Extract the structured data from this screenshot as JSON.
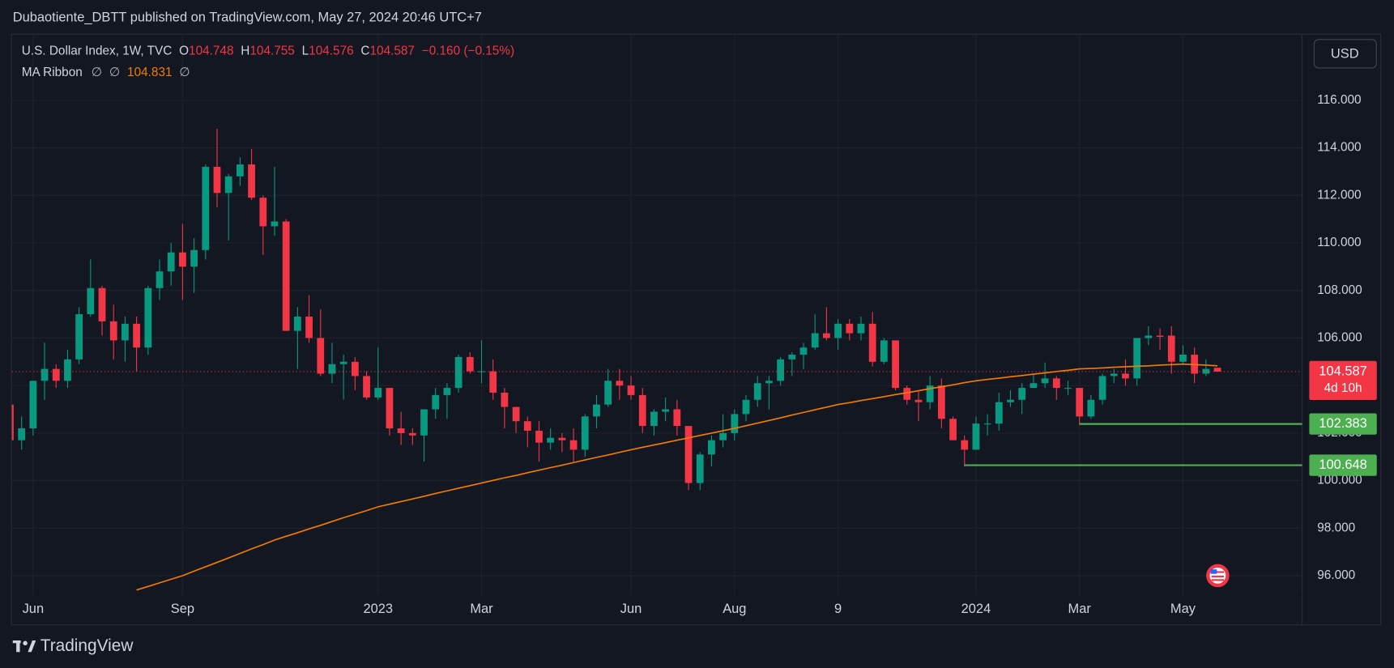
{
  "header": "Dubaotiente_DBTT published on TradingView.com, May 27, 2024 20:46 UTC+7",
  "footer": "TradingView",
  "currency": "USD",
  "chart_data": {
    "type": "candlestick",
    "title": "U.S. Dollar Index, 1W, TVC",
    "ohlc_letters": [
      "O",
      "H",
      "L",
      "C"
    ],
    "change": "−0.160 (−0.15%)",
    "countdown": "4d 10h",
    "up_color": "#089981",
    "down_color": "#f23645",
    "grid": true,
    "categories": [
      null,
      null,
      "Jun",
      null,
      null,
      null,
      null,
      null,
      null,
      null,
      null,
      null,
      null,
      null,
      null,
      "Sep",
      null,
      null,
      null,
      null,
      null,
      null,
      null,
      null,
      null,
      null,
      null,
      null,
      null,
      null,
      null,
      null,
      "2023",
      null,
      null,
      null,
      null,
      null,
      null,
      null,
      null,
      "Mar",
      null,
      null,
      null,
      null,
      null,
      null,
      null,
      null,
      null,
      null,
      null,
      null,
      "Jun",
      null,
      null,
      null,
      null,
      null,
      null,
      null,
      null,
      "Aug",
      null,
      null,
      null,
      null,
      null,
      null,
      null,
      null,
      "9",
      null,
      null,
      null,
      null,
      null,
      null,
      null,
      null,
      null,
      null,
      null,
      "2024",
      null,
      null,
      null,
      null,
      null,
      null,
      null,
      null,
      "Mar",
      null,
      null,
      null,
      null,
      null,
      null,
      null,
      null,
      "May",
      null,
      null,
      null
    ],
    "open": [
      103.2,
      101.7,
      102.2,
      104.2,
      104.7,
      104.2,
      105.1,
      107.0,
      108.1,
      106.7,
      105.9,
      106.6,
      105.6,
      108.1,
      108.8,
      109.6,
      109.0,
      109.7,
      113.2,
      112.1,
      112.8,
      113.3,
      111.9,
      110.7,
      110.9,
      106.3,
      106.9,
      106.0,
      104.5,
      104.9,
      105.0,
      104.4,
      103.5,
      103.9,
      102.2,
      102.0,
      101.9,
      103.0,
      103.6,
      103.9,
      105.2,
      104.6,
      104.6,
      103.7,
      103.1,
      102.5,
      102.1,
      101.6,
      101.8,
      101.7,
      101.3,
      102.7,
      103.2,
      104.2,
      104.0,
      103.6,
      102.3,
      102.9,
      103.0,
      102.3,
      99.9,
      101.1,
      101.7,
      102.0,
      102.8,
      103.4,
      104.1,
      104.2,
      105.1,
      105.3,
      105.6,
      106.2,
      106.0,
      106.6,
      106.2,
      106.6,
      105.0,
      105.9,
      103.9,
      103.4,
      103.3,
      104.0,
      102.6,
      101.7,
      101.3,
      102.4,
      102.4,
      103.3,
      103.4,
      103.9,
      104.1,
      104.3,
      103.9,
      103.9,
      102.7,
      103.4,
      104.4,
      104.5,
      104.3,
      106.0,
      106.1,
      106.1,
      105.0,
      105.3,
      104.5,
      104.748
    ],
    "high": [
      103.4,
      102.7,
      104.2,
      105.8,
      104.9,
      105.5,
      107.3,
      109.3,
      108.2,
      107.4,
      106.9,
      106.9,
      108.2,
      109.3,
      110.0,
      110.8,
      110.2,
      113.3,
      114.8,
      112.9,
      113.6,
      113.95,
      112.0,
      113.2,
      111.0,
      107.3,
      107.8,
      107.2,
      105.8,
      105.3,
      105.2,
      104.6,
      105.6,
      103.9,
      102.9,
      102.2,
      103.0,
      103.9,
      104.1,
      105.3,
      105.4,
      105.9,
      105.1,
      103.9,
      103.1,
      102.7,
      102.5,
      102.2,
      102.0,
      102.2,
      102.8,
      103.6,
      104.7,
      104.7,
      104.4,
      103.9,
      103.0,
      103.5,
      103.4,
      102.3,
      101.2,
      101.9,
      102.8,
      103.0,
      103.6,
      104.4,
      104.4,
      105.2,
      105.4,
      105.8,
      107.0,
      107.3,
      106.8,
      106.8,
      106.9,
      107.1,
      106.0,
      105.9,
      104.0,
      103.8,
      104.4,
      104.3,
      102.7,
      101.9,
      102.7,
      102.8,
      103.7,
      103.8,
      104.1,
      104.5,
      104.97,
      104.4,
      104.2,
      103.9,
      103.6,
      104.5,
      104.7,
      105.1,
      106.0,
      106.5,
      106.4,
      106.5,
      105.7,
      105.6,
      105.1,
      104.755
    ],
    "low": [
      101.6,
      101.3,
      101.9,
      103.4,
      103.9,
      103.9,
      104.9,
      106.9,
      106.1,
      105.1,
      105.0,
      104.6,
      105.3,
      107.6,
      108.2,
      107.6,
      107.9,
      109.3,
      111.5,
      110.1,
      112.4,
      111.8,
      109.5,
      110.3,
      106.3,
      104.7,
      105.8,
      104.4,
      104.1,
      103.4,
      103.8,
      103.4,
      103.4,
      101.9,
      101.5,
      101.5,
      100.8,
      102.6,
      102.6,
      103.7,
      104.5,
      104.1,
      103.4,
      102.2,
      102.0,
      101.4,
      100.8,
      101.3,
      101.2,
      100.8,
      101.0,
      102.2,
      103.1,
      103.4,
      103.4,
      102.0,
      101.9,
      102.5,
      101.9,
      99.6,
      99.6,
      100.6,
      101.4,
      101.7,
      102.5,
      103.1,
      103.0,
      104.0,
      104.4,
      104.7,
      105.5,
      105.9,
      105.5,
      105.9,
      105.9,
      104.8,
      104.9,
      103.8,
      103.2,
      102.5,
      103.0,
      102.2,
      101.7,
      100.6,
      101.3,
      101.9,
      102.1,
      103.1,
      102.8,
      103.9,
      103.9,
      103.4,
      103.6,
      102.35,
      102.6,
      103.2,
      104.1,
      104.0,
      104.0,
      105.7,
      105.5,
      104.5,
      104.9,
      104.1,
      104.4,
      104.576
    ],
    "close": [
      101.7,
      102.2,
      104.2,
      104.7,
      104.2,
      105.1,
      107.0,
      108.1,
      106.7,
      105.9,
      106.6,
      105.6,
      108.1,
      108.8,
      109.6,
      109.0,
      109.7,
      113.2,
      112.1,
      112.8,
      113.3,
      111.9,
      110.7,
      110.9,
      106.3,
      106.9,
      106.0,
      104.5,
      104.9,
      105.0,
      104.4,
      103.5,
      103.9,
      102.2,
      102.0,
      101.9,
      103.0,
      103.6,
      103.9,
      105.2,
      104.6,
      104.6,
      103.7,
      103.1,
      102.5,
      102.1,
      101.6,
      101.8,
      101.7,
      101.3,
      102.7,
      103.2,
      104.2,
      104.0,
      103.6,
      102.3,
      102.9,
      103.0,
      102.3,
      99.9,
      101.1,
      101.7,
      102.0,
      102.8,
      103.4,
      104.1,
      104.2,
      105.1,
      105.3,
      105.6,
      106.2,
      106.0,
      106.6,
      106.2,
      106.6,
      105.0,
      105.9,
      103.9,
      103.4,
      103.3,
      104.0,
      102.6,
      101.7,
      101.3,
      102.4,
      102.4,
      103.3,
      103.4,
      103.9,
      104.1,
      104.3,
      103.9,
      103.9,
      102.7,
      103.4,
      104.4,
      104.5,
      104.3,
      106.0,
      106.1,
      106.05,
      105.0,
      105.3,
      104.5,
      104.7,
      104.587
    ],
    "ma": {
      "name": "MA Ribbon",
      "placeholders": [
        "∅",
        "∅",
        "∅"
      ],
      "color": "#f57c00",
      "values": [
        null,
        null,
        null,
        null,
        null,
        null,
        null,
        null,
        null,
        null,
        null,
        95.4,
        95.55,
        95.7,
        95.85,
        96.0,
        96.19,
        96.38,
        96.56,
        96.75,
        96.94,
        97.13,
        97.31,
        97.5,
        97.66,
        97.81,
        97.97,
        98.12,
        98.28,
        98.44,
        98.59,
        98.74,
        98.9,
        99.01,
        99.12,
        99.23,
        99.34,
        99.46,
        99.57,
        99.68,
        99.79,
        99.9,
        100.01,
        100.12,
        100.22,
        100.33,
        100.44,
        100.55,
        100.65,
        100.76,
        100.87,
        100.98,
        101.08,
        101.19,
        101.3,
        101.4,
        101.5,
        101.6,
        101.7,
        101.8,
        101.9,
        102.0,
        102.1,
        102.2,
        102.31,
        102.42,
        102.53,
        102.64,
        102.76,
        102.87,
        102.98,
        103.09,
        103.2,
        103.28,
        103.37,
        103.45,
        103.53,
        103.62,
        103.7,
        103.78,
        103.87,
        103.95,
        104.03,
        104.12,
        104.2,
        104.26,
        104.31,
        104.37,
        104.42,
        104.48,
        104.53,
        104.59,
        104.64,
        104.7,
        104.72,
        104.74,
        104.77,
        104.79,
        104.81,
        104.83,
        104.86,
        104.88,
        104.9,
        104.88,
        104.86,
        104.831
      ]
    },
    "levels": [
      {
        "value": 102.383,
        "start": 93,
        "color": "#4caf50"
      },
      {
        "value": 100.648,
        "start": 83,
        "color": "#4caf50"
      }
    ],
    "ylim": [
      93.95,
      118.76
    ],
    "yticks": [
      {
        "value": 96,
        "label": "96.000"
      },
      {
        "value": 98,
        "label": "98.000"
      },
      {
        "value": 100,
        "label": "100.000"
      },
      {
        "value": 102,
        "label": "102.000"
      },
      {
        "value": 104,
        "label": "104.000"
      },
      {
        "value": 106,
        "label": "106.000"
      },
      {
        "value": 108,
        "label": "108.000"
      },
      {
        "value": 110,
        "label": "110.000"
      },
      {
        "value": 112,
        "label": "112.000"
      },
      {
        "value": 114,
        "label": "114.000"
      },
      {
        "value": 116,
        "label": "116.000"
      }
    ]
  }
}
